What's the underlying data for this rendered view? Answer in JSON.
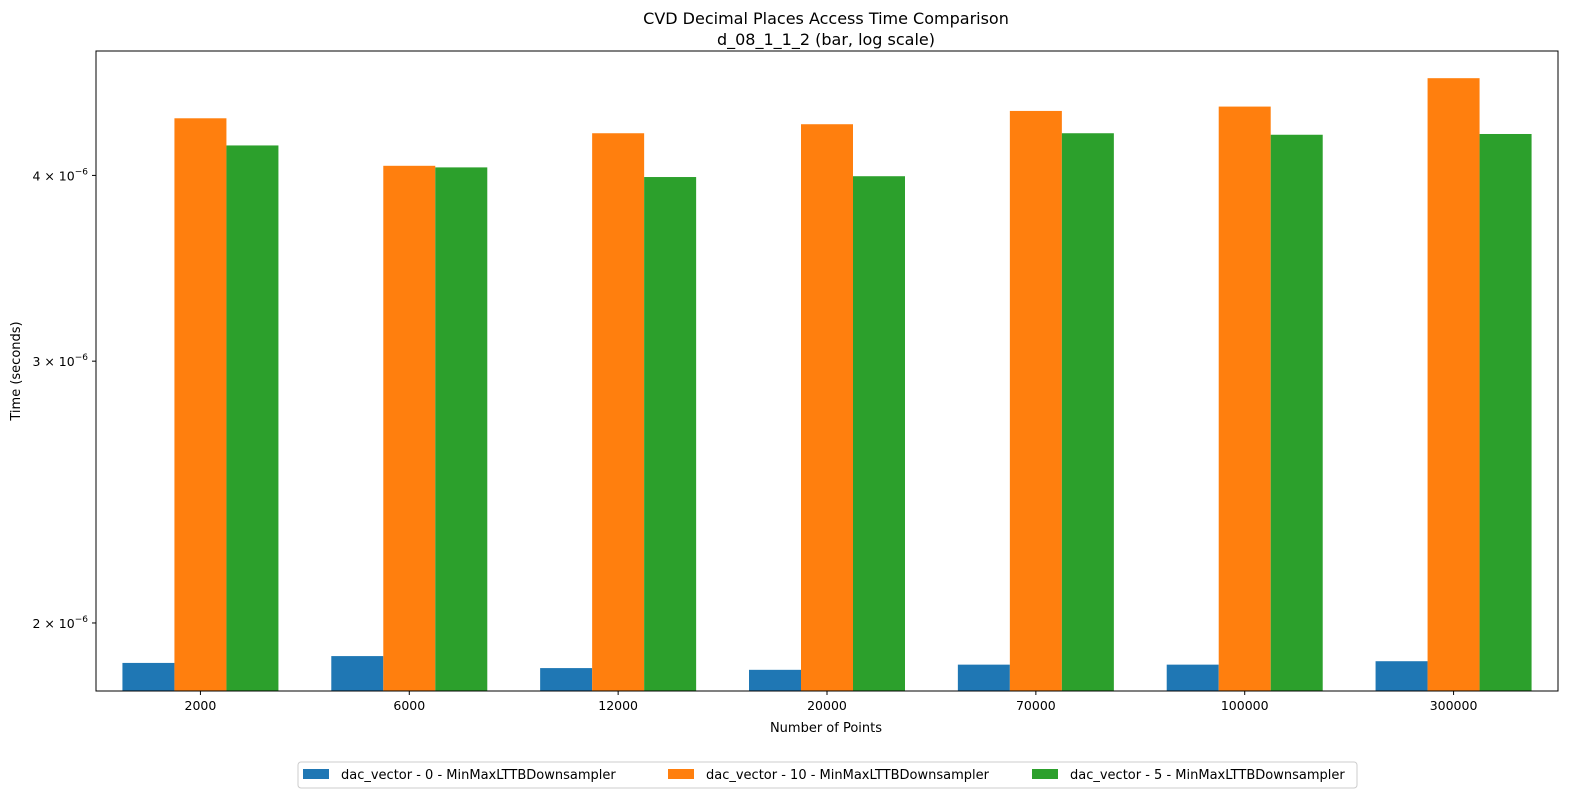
{
  "chart_data": {
    "type": "bar",
    "title": "CVD Decimal Places Access Time Comparison",
    "subtitle": "d_08_1_1_2 (bar, log scale)",
    "xlabel": "Number of Points",
    "ylabel": "Time (seconds)",
    "yscale": "log",
    "ylim": [
      1.8e-06,
      4.85e-06
    ],
    "yticks": [
      {
        "value": 2e-06,
        "coef": "2",
        "exp": "−6"
      },
      {
        "value": 3e-06,
        "coef": "3",
        "exp": "−6"
      },
      {
        "value": 4e-06,
        "coef": "4",
        "exp": "−6"
      }
    ],
    "categories": [
      "2000",
      "6000",
      "12000",
      "20000",
      "70000",
      "100000",
      "300000"
    ],
    "series": [
      {
        "name": "dac_vector - 0 - MinMaxLTTBDownsampler",
        "color": "#1f77b4",
        "values": [
          1.88e-06,
          1.9e-06,
          1.865e-06,
          1.86e-06,
          1.875e-06,
          1.875e-06,
          1.885e-06
        ]
      },
      {
        "name": "dac_vector - 10 - MinMaxLTTBDownsampler",
        "color": "#ff7f0e",
        "values": [
          4.37e-06,
          4.06e-06,
          4.27e-06,
          4.33e-06,
          4.42e-06,
          4.45e-06,
          4.65e-06
        ]
      },
      {
        "name": "dac_vector - 5 - MinMaxLTTBDownsampler",
        "color": "#2ca02c",
        "values": [
          4.19e-06,
          4.05e-06,
          3.99e-06,
          3.995e-06,
          4.27e-06,
          4.26e-06,
          4.265e-06
        ]
      }
    ],
    "grid": false,
    "legend_placement": "bottom-center"
  }
}
